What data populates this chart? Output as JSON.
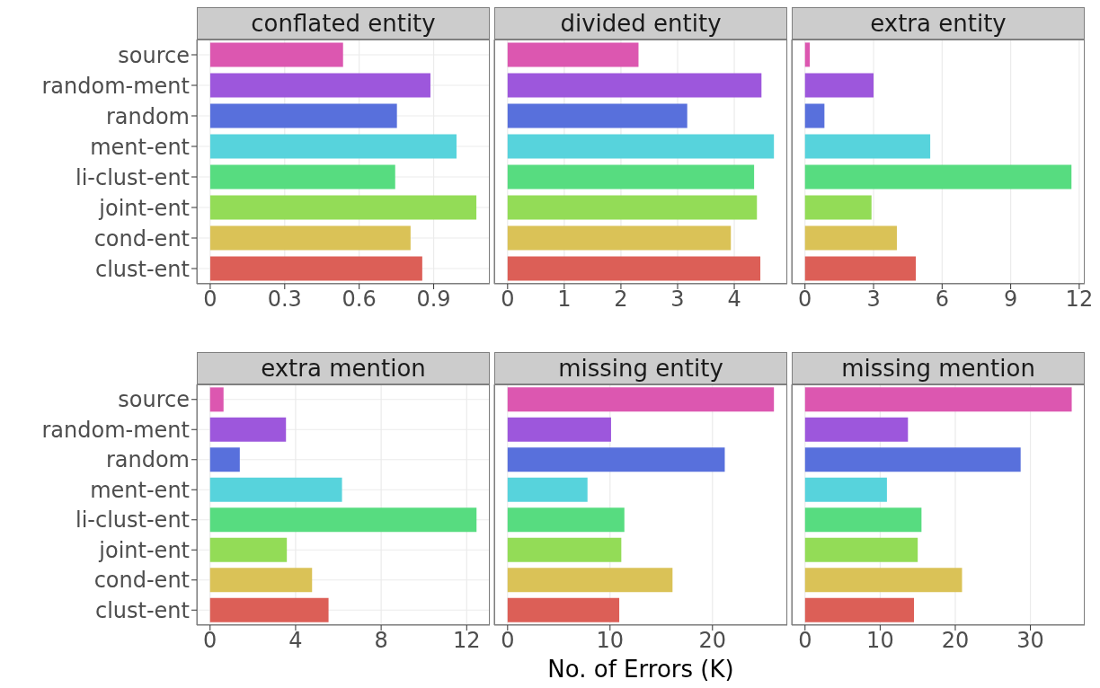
{
  "chart_data": [
    {
      "type": "bar",
      "orientation": "horizontal",
      "title": "conflated entity",
      "categories": [
        "source",
        "random-ment",
        "random",
        "ment-ent",
        "li-clust-ent",
        "joint-ent",
        "cond-ent",
        "clust-ent"
      ],
      "values": [
        0.535,
        0.887,
        0.752,
        0.992,
        0.745,
        1.072,
        0.807,
        0.854
      ],
      "colors": [
        "#dc57b0",
        "#9d57dc",
        "#5870dc",
        "#57d3dc",
        "#57dc80",
        "#93dc57",
        "#dac257",
        "#dc5f57"
      ],
      "xlim": [
        -0.054,
        1.126
      ],
      "xticks": [
        0,
        0.3,
        0.6,
        0.9
      ],
      "grid": true
    },
    {
      "type": "bar",
      "orientation": "horizontal",
      "title": "divided entity",
      "categories": [
        null,
        null,
        null,
        null,
        null,
        null,
        null,
        null
      ],
      "values": [
        2.31,
        4.48,
        3.17,
        4.7,
        4.35,
        4.4,
        3.94,
        4.46
      ],
      "colors": [
        "#dc57b0",
        "#9d57dc",
        "#5870dc",
        "#57d3dc",
        "#57dc80",
        "#93dc57",
        "#dac257",
        "#dc5f57"
      ],
      "xlim": [
        -0.235,
        4.935
      ],
      "xticks": [
        0,
        1,
        2,
        3,
        4
      ],
      "grid": true,
      "tick_labels": "x"
    },
    {
      "type": "bar",
      "orientation": "horizontal",
      "title": "extra entity",
      "categories": [
        null,
        null,
        null,
        null,
        null,
        null,
        null,
        null
      ],
      "values": [
        0.21,
        3.0,
        0.85,
        5.48,
        11.66,
        2.91,
        4.02,
        4.85
      ],
      "colors": [
        "#dc57b0",
        "#9d57dc",
        "#5870dc",
        "#57d3dc",
        "#57dc80",
        "#93dc57",
        "#dac257",
        "#dc5f57"
      ],
      "xlim": [
        -0.58,
        12.24
      ],
      "xticks": [
        0,
        3,
        6,
        9,
        12
      ],
      "grid": true,
      "tick_labels": "x"
    },
    {
      "type": "bar",
      "orientation": "horizontal",
      "title": "extra mention",
      "categories": [
        "source",
        "random-ment",
        "random",
        "ment-ent",
        "li-clust-ent",
        "joint-ent",
        "cond-ent",
        "clust-ent"
      ],
      "values": [
        0.63,
        3.55,
        1.39,
        6.17,
        12.46,
        3.59,
        4.77,
        5.54
      ],
      "colors": [
        "#dc57b0",
        "#9d57dc",
        "#5870dc",
        "#57d3dc",
        "#57dc80",
        "#93dc57",
        "#dac257",
        "#dc5f57"
      ],
      "xlim": [
        -0.62,
        13.08
      ],
      "xticks": [
        0,
        4,
        8,
        12
      ],
      "grid": true
    },
    {
      "type": "bar",
      "orientation": "horizontal",
      "title": "missing entity",
      "xlabel": "No. of Errors (K)",
      "categories": [
        null,
        null,
        null,
        null,
        null,
        null,
        null,
        null
      ],
      "values": [
        26.0,
        10.1,
        21.2,
        7.8,
        11.4,
        11.1,
        16.1,
        10.9
      ],
      "colors": [
        "#dc57b0",
        "#9d57dc",
        "#5870dc",
        "#57d3dc",
        "#57dc80",
        "#93dc57",
        "#dac257",
        "#dc5f57"
      ],
      "xlim": [
        -1.3,
        27.3
      ],
      "xticks": [
        0,
        10,
        20
      ],
      "grid": true,
      "tick_labels": "x"
    },
    {
      "type": "bar",
      "orientation": "horizontal",
      "title": "missing mention",
      "categories": [
        null,
        null,
        null,
        null,
        null,
        null,
        null,
        null
      ],
      "values": [
        35.5,
        13.7,
        28.7,
        10.9,
        15.5,
        15.0,
        20.9,
        14.5
      ],
      "colors": [
        "#dc57b0",
        "#9d57dc",
        "#5870dc",
        "#57d3dc",
        "#57dc80",
        "#93dc57",
        "#dac257",
        "#dc5f57"
      ],
      "xlim": [
        -1.77,
        37.23
      ],
      "xticks": [
        0,
        10,
        20,
        30
      ],
      "grid": true,
      "tick_labels": "x"
    }
  ]
}
